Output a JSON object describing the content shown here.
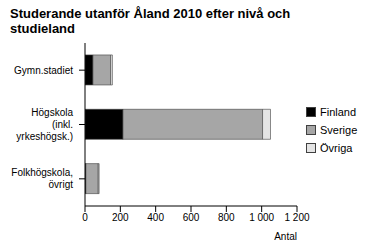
{
  "chart_data": {
    "type": "bar",
    "title": "Studerande utanför Åland 2010 efter nivå och studieland",
    "orientation": "horizontal",
    "stacked": true,
    "categories": [
      "Gymn.stadiet",
      "Högskola (inkl. yrkeshögsk.)",
      "Folkhögskola, övrigt"
    ],
    "series": [
      {
        "name": "Finland",
        "color": "#000000",
        "values": [
          45,
          215,
          5
        ]
      },
      {
        "name": "Sverige",
        "color": "#a6a6a6",
        "values": [
          100,
          790,
          70
        ]
      },
      {
        "name": "Övriga",
        "color": "#e4e4e4",
        "values": [
          10,
          45,
          5
        ]
      }
    ],
    "xlim": [
      0,
      1200
    ],
    "xticks": [
      0,
      200,
      400,
      600,
      800,
      {
        "value": 1000,
        "label": "1 000"
      },
      {
        "value": 1200,
        "label": "1 200"
      }
    ],
    "x_label": "Antal",
    "grid": false,
    "legend": "right"
  }
}
